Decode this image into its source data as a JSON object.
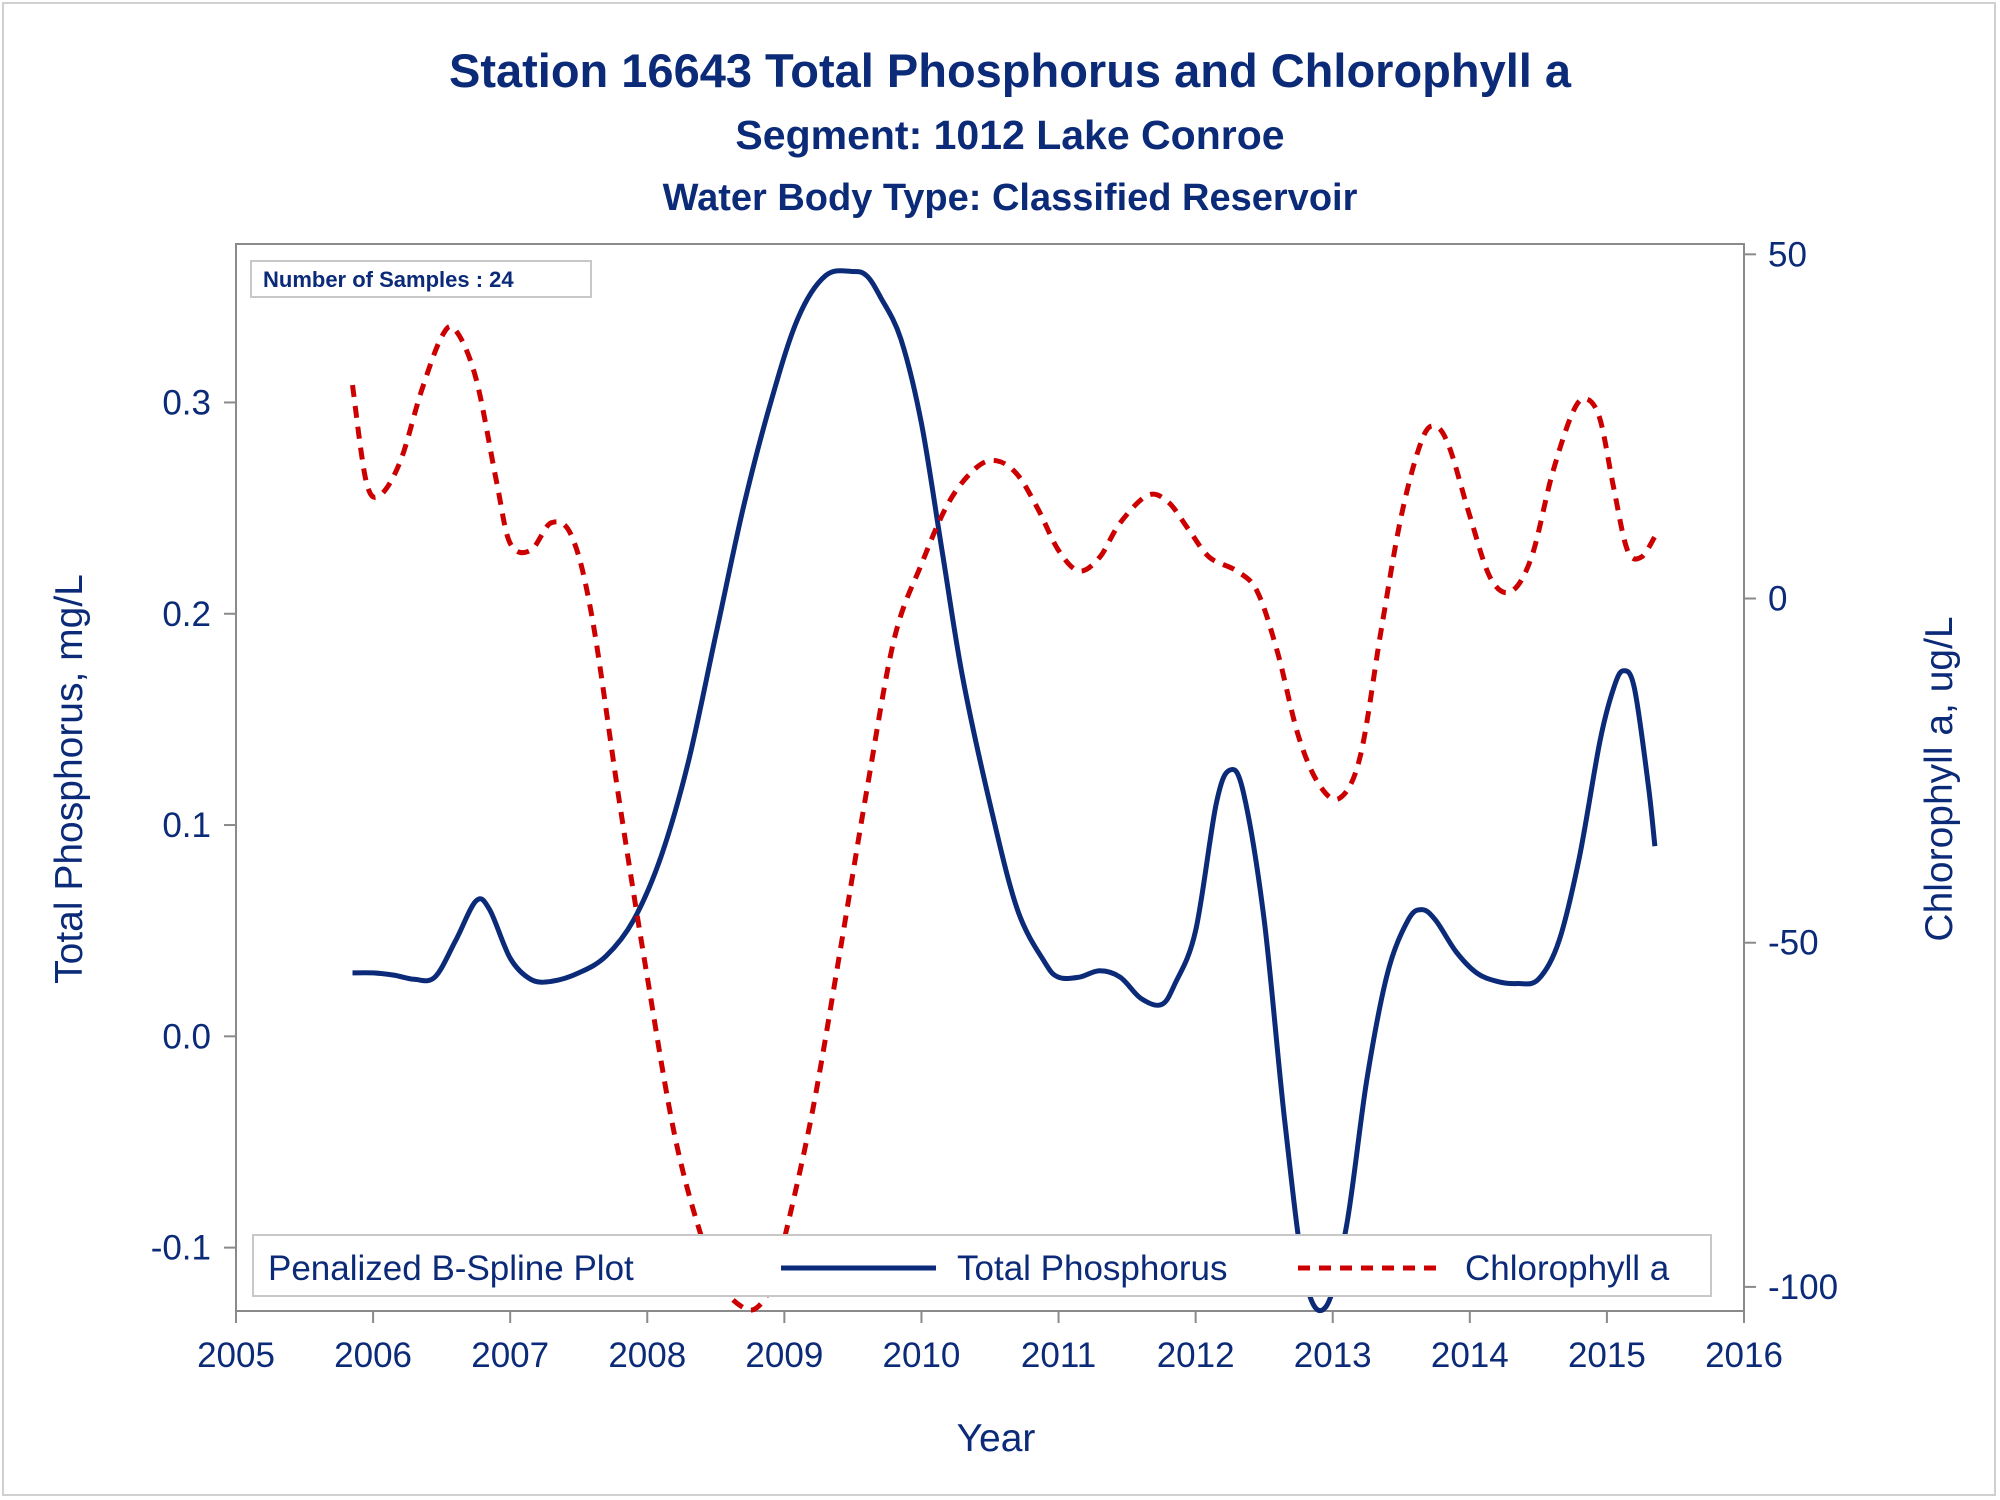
{
  "chart_data": {
    "type": "line",
    "title": "Station 16643  Total Phosphorus and Chlorophyll a",
    "subtitle": "Segment: 1012  Lake Conroe",
    "subtitle2": "Water Body Type: Classified Reservoir",
    "xlabel": "Year",
    "ylabel": "Total Phosphorus, mg/L",
    "y2label": "Chlorophyll a, ug/L",
    "xlim": [
      2005,
      2016
    ],
    "ylim": [
      -0.13,
      0.375
    ],
    "y2lim": [
      -103.5,
      51.5
    ],
    "xticks": [
      "2005",
      "2006",
      "2007",
      "2008",
      "2009",
      "2010",
      "2011",
      "2012",
      "2013",
      "2014",
      "2015",
      "2016"
    ],
    "yticks": [
      "-0.1",
      "0.0",
      "0.1",
      "0.2",
      "0.3"
    ],
    "y2ticks": [
      "-100",
      "-50",
      "0",
      "50"
    ],
    "inset": "Number of Samples : 24",
    "legend": {
      "title": "Penalized B-Spline Plot",
      "position": "bottom",
      "entries": [
        "Total Phosphorus",
        "Chlorophyll a"
      ]
    },
    "colors": {
      "total_phosphorus": "#0b2a78",
      "chlorophyll_a": "#cc0000"
    },
    "series": [
      {
        "name": "Total Phosphorus",
        "axis": "left",
        "style": "solid",
        "x": [
          2005.85,
          2006.0,
          2006.15,
          2006.3,
          2006.45,
          2006.6,
          2006.75,
          2006.85,
          2007.0,
          2007.15,
          2007.3,
          2007.5,
          2007.7,
          2007.9,
          2008.1,
          2008.3,
          2008.5,
          2008.7,
          2008.9,
          2009.1,
          2009.3,
          2009.5,
          2009.6,
          2009.7,
          2009.85,
          2010.0,
          2010.15,
          2010.3,
          2010.5,
          2010.7,
          2010.9,
          2011.0,
          2011.15,
          2011.3,
          2011.45,
          2011.6,
          2011.75,
          2011.85,
          2012.0,
          2012.15,
          2012.25,
          2012.35,
          2012.5,
          2012.65,
          2012.8,
          2012.95,
          2013.1,
          2013.25,
          2013.4,
          2013.55,
          2013.65,
          2013.75,
          2013.9,
          2014.05,
          2014.2,
          2014.35,
          2014.5,
          2014.65,
          2014.8,
          2014.95,
          2015.05,
          2015.12,
          2015.2,
          2015.3,
          2015.35
        ],
        "y": [
          0.03,
          0.03,
          0.029,
          0.027,
          0.028,
          0.045,
          0.064,
          0.06,
          0.037,
          0.027,
          0.026,
          0.03,
          0.038,
          0.055,
          0.085,
          0.13,
          0.19,
          0.25,
          0.3,
          0.34,
          0.36,
          0.362,
          0.36,
          0.35,
          0.33,
          0.29,
          0.23,
          0.17,
          0.11,
          0.06,
          0.035,
          0.028,
          0.028,
          0.031,
          0.028,
          0.018,
          0.015,
          0.025,
          0.05,
          0.11,
          0.126,
          0.115,
          0.055,
          -0.04,
          -0.115,
          -0.128,
          -0.09,
          -0.02,
          0.03,
          0.055,
          0.06,
          0.055,
          0.04,
          0.03,
          0.026,
          0.025,
          0.027,
          0.045,
          0.085,
          0.14,
          0.165,
          0.173,
          0.165,
          0.12,
          0.09
        ]
      },
      {
        "name": "Chlorophyll a",
        "axis": "right",
        "style": "dashed",
        "x": [
          2005.85,
          2005.95,
          2006.05,
          2006.2,
          2006.35,
          2006.5,
          2006.6,
          2006.75,
          2006.9,
          2007.0,
          2007.15,
          2007.3,
          2007.45,
          2007.6,
          2007.8,
          2008.0,
          2008.2,
          2008.4,
          2008.55,
          2008.7,
          2008.8,
          2008.9,
          2009.0,
          2009.2,
          2009.4,
          2009.6,
          2009.8,
          2010.0,
          2010.2,
          2010.4,
          2010.55,
          2010.7,
          2010.85,
          2011.0,
          2011.15,
          2011.3,
          2011.45,
          2011.65,
          2011.8,
          2011.95,
          2012.1,
          2012.3,
          2012.45,
          2012.6,
          2012.75,
          2012.9,
          2013.05,
          2013.2,
          2013.35,
          2013.5,
          2013.65,
          2013.75,
          2013.85,
          2014.0,
          2014.15,
          2014.3,
          2014.45,
          2014.6,
          2014.75,
          2014.85,
          2014.95,
          2015.05,
          2015.15,
          2015.25,
          2015.35
        ],
        "y": [
          31,
          17,
          15,
          20,
          30,
          38,
          39,
          32,
          17,
          8,
          7,
          11,
          9,
          -3,
          -30,
          -55,
          -78,
          -93,
          -100,
          -103,
          -103,
          -100,
          -93,
          -75,
          -52,
          -28,
          -6,
          5,
          14,
          19,
          20,
          18,
          13,
          7,
          4,
          6,
          11,
          15,
          14,
          10,
          6,
          4,
          1,
          -8,
          -20,
          -27,
          -29,
          -23,
          -5,
          12,
          23,
          25,
          22,
          12,
          3,
          1,
          6,
          18,
          27,
          29,
          26,
          16,
          7,
          6,
          9
        ]
      }
    ]
  }
}
